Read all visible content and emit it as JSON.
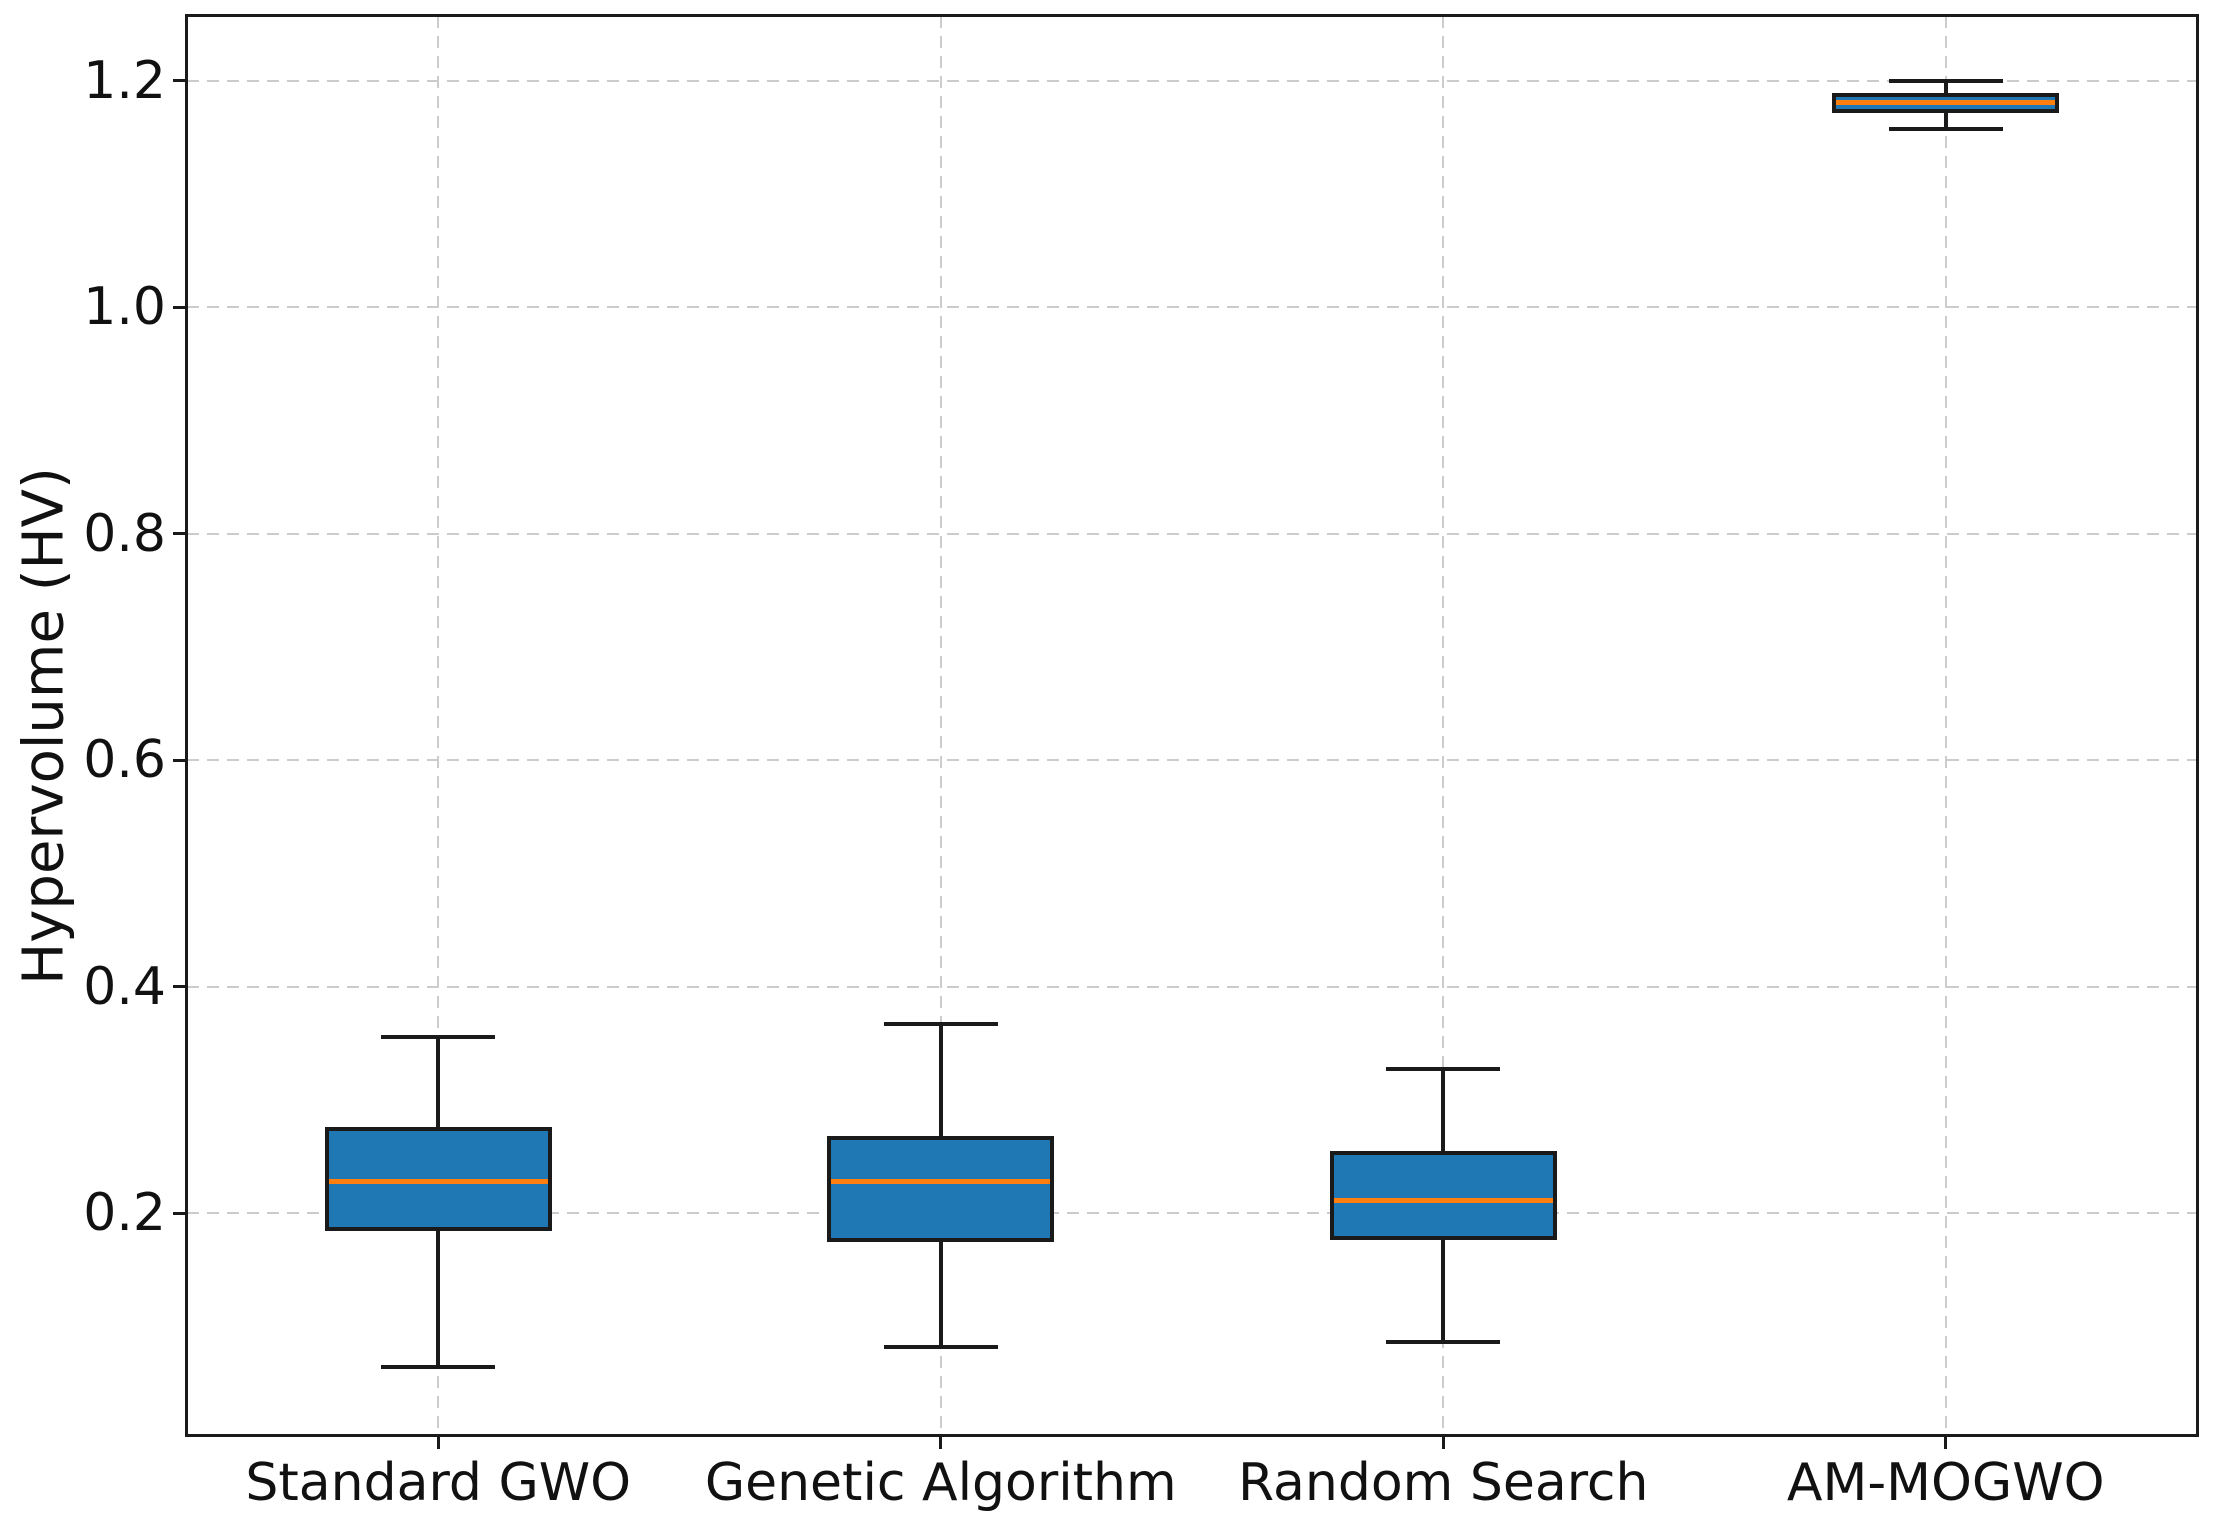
{
  "chart_data": {
    "type": "boxplot",
    "title": "",
    "xlabel": "",
    "ylabel": "Hypervolume (HV)",
    "categories": [
      "Standard GWO",
      "Genetic Algorithm",
      "Random Search",
      "AM-MOGWO"
    ],
    "yticks": [
      0.2,
      0.4,
      0.6,
      0.8,
      1.0,
      1.2
    ],
    "ytick_labels": [
      "0.2",
      "0.4",
      "0.6",
      "0.8",
      "1.0",
      "1.2"
    ],
    "ylim": [
      0.004,
      1.257
    ],
    "grid": {
      "visible": true,
      "style": "dashed",
      "axes": "both"
    },
    "legend": {
      "visible": false
    },
    "boxes": [
      {
        "label": "Standard GWO",
        "whisker_low": 0.064,
        "q1": 0.184,
        "median": 0.228,
        "q3": 0.276,
        "whisker_high": 0.355
      },
      {
        "label": "Genetic Algorithm",
        "whisker_low": 0.082,
        "q1": 0.174,
        "median": 0.228,
        "q3": 0.268,
        "whisker_high": 0.367
      },
      {
        "label": "Random Search",
        "whisker_low": 0.086,
        "q1": 0.176,
        "median": 0.211,
        "q3": 0.255,
        "whisker_high": 0.327
      },
      {
        "label": "AM-MOGWO",
        "whisker_low": 1.157,
        "q1": 1.171,
        "median": 1.181,
        "q3": 1.189,
        "whisker_high": 1.2
      }
    ],
    "colors": {
      "box_fill": "#1f77b4",
      "box_edge": "#1a1a1a",
      "median": "#ff7f0e",
      "whisker": "#1a1a1a",
      "grid": "#cccccc",
      "tick_text": "#111111",
      "background": "#ffffff"
    }
  }
}
